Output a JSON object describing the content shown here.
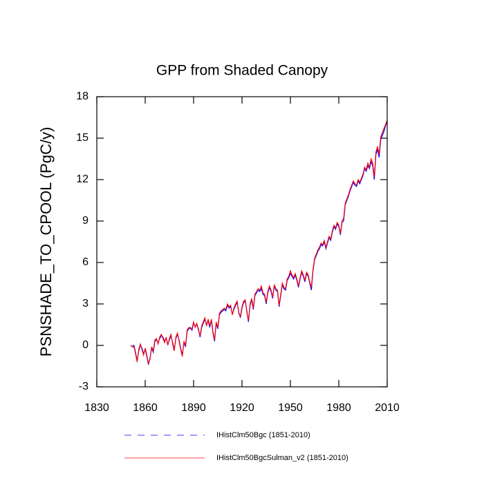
{
  "chart_data": {
    "type": "line",
    "title": "GPP from Shaded Canopy",
    "y_label": "PSNSHADE_TO_CPOOL  (PgC/y)",
    "xlim": [
      1830,
      2010
    ],
    "xticks": [
      1830,
      1860,
      1890,
      1920,
      1950,
      1980,
      2010
    ],
    "ylim": [
      -3,
      18
    ],
    "yticks": [
      -3,
      0,
      3,
      6,
      9,
      12,
      15,
      18
    ],
    "x": [
      1851,
      1852,
      1853,
      1854,
      1855,
      1856,
      1857,
      1858,
      1859,
      1860,
      1861,
      1862,
      1863,
      1864,
      1865,
      1866,
      1867,
      1868,
      1869,
      1870,
      1871,
      1872,
      1873,
      1874,
      1875,
      1876,
      1877,
      1878,
      1879,
      1880,
      1881,
      1882,
      1883,
      1884,
      1885,
      1886,
      1887,
      1888,
      1889,
      1890,
      1891,
      1892,
      1893,
      1894,
      1895,
      1896,
      1897,
      1898,
      1899,
      1900,
      1901,
      1902,
      1903,
      1904,
      1905,
      1906,
      1907,
      1908,
      1909,
      1910,
      1911,
      1912,
      1913,
      1914,
      1915,
      1916,
      1917,
      1918,
      1919,
      1920,
      1921,
      1922,
      1923,
      1924,
      1925,
      1926,
      1927,
      1928,
      1929,
      1930,
      1931,
      1932,
      1933,
      1934,
      1935,
      1936,
      1937,
      1938,
      1939,
      1940,
      1941,
      1942,
      1943,
      1944,
      1945,
      1946,
      1947,
      1948,
      1949,
      1950,
      1951,
      1952,
      1953,
      1954,
      1955,
      1956,
      1957,
      1958,
      1959,
      1960,
      1961,
      1962,
      1963,
      1964,
      1965,
      1966,
      1967,
      1968,
      1969,
      1970,
      1971,
      1972,
      1973,
      1974,
      1975,
      1976,
      1977,
      1978,
      1979,
      1980,
      1981,
      1982,
      1983,
      1984,
      1985,
      1986,
      1987,
      1988,
      1989,
      1990,
      1991,
      1992,
      1993,
      1994,
      1995,
      1996,
      1997,
      1998,
      1999,
      2000,
      2001,
      2002,
      2003,
      2004,
      2005,
      2006,
      2007,
      2008,
      2009,
      2010
    ],
    "series": [
      {
        "name": "IHistClm50Bgc (1851-2010)",
        "color": "#0000ff",
        "dash": true,
        "values": [
          0.0,
          -0.1,
          0.0,
          -0.5,
          -1.1,
          -0.4,
          0.0,
          -0.2,
          -0.6,
          -0.3,
          -0.8,
          -1.4,
          -0.9,
          -0.2,
          -0.5,
          0.3,
          0.4,
          0.2,
          0.5,
          0.7,
          0.6,
          0.3,
          0.5,
          0.1,
          0.4,
          0.7,
          0.2,
          -0.3,
          0.5,
          0.8,
          0.4,
          -0.2,
          -0.7,
          0.2,
          -0.1,
          1.0,
          1.2,
          1.3,
          1.1,
          1.6,
          1.4,
          1.5,
          1.2,
          0.6,
          1.3,
          1.6,
          1.9,
          1.5,
          1.8,
          1.3,
          1.8,
          0.9,
          0.3,
          1.6,
          1.2,
          2.2,
          2.4,
          2.5,
          2.6,
          2.5,
          2.9,
          2.7,
          2.8,
          2.3,
          2.6,
          2.9,
          3.1,
          2.4,
          2.0,
          2.7,
          3.1,
          3.2,
          2.5,
          1.7,
          2.9,
          3.3,
          2.6,
          3.6,
          3.8,
          4.0,
          3.9,
          4.1,
          3.7,
          3.6,
          3.0,
          3.8,
          4.2,
          3.9,
          3.4,
          4.3,
          4.0,
          3.9,
          2.8,
          3.6,
          4.4,
          4.1,
          4.0,
          4.7,
          4.9,
          5.2,
          5.0,
          4.8,
          5.1,
          4.7,
          4.2,
          4.8,
          5.3,
          5.0,
          4.6,
          5.2,
          5.0,
          4.5,
          4.0,
          5.4,
          6.2,
          6.5,
          6.8,
          7.0,
          7.3,
          7.2,
          7.5,
          7.0,
          7.4,
          7.8,
          7.6,
          8.2,
          8.6,
          8.4,
          8.8,
          8.6,
          8.0,
          8.9,
          9.0,
          10.2,
          10.5,
          10.8,
          11.2,
          11.5,
          11.8,
          11.6,
          11.5,
          11.9,
          11.7,
          12.0,
          12.3,
          12.8,
          12.6,
          13.0,
          12.8,
          13.3,
          13.0,
          12.0,
          13.8,
          14.2,
          13.6,
          14.9,
          15.2,
          15.5,
          15.9,
          16.2
        ]
      },
      {
        "name": "IHistClm50BgcSulman_v2 (1851-2010)",
        "color": "#ff0000",
        "dash": false,
        "values": [
          0.0,
          -0.1,
          -0.1,
          -0.6,
          -1.2,
          -0.3,
          0.1,
          -0.3,
          -0.7,
          -0.2,
          -0.7,
          -1.3,
          -1.0,
          -0.1,
          -0.4,
          0.4,
          0.5,
          0.1,
          0.6,
          0.8,
          0.5,
          0.2,
          0.6,
          0.0,
          0.5,
          0.8,
          0.1,
          -0.4,
          0.6,
          0.9,
          0.3,
          -0.3,
          -0.8,
          0.3,
          0.0,
          1.1,
          1.3,
          1.2,
          1.2,
          1.7,
          1.3,
          1.6,
          1.1,
          0.7,
          1.4,
          1.7,
          2.0,
          1.4,
          1.9,
          1.4,
          1.9,
          1.0,
          0.4,
          1.7,
          1.3,
          2.3,
          2.5,
          2.6,
          2.7,
          2.6,
          3.0,
          2.8,
          2.9,
          2.2,
          2.7,
          3.0,
          3.2,
          2.3,
          2.1,
          2.8,
          3.2,
          3.3,
          2.4,
          1.8,
          3.0,
          3.4,
          2.7,
          3.7,
          3.9,
          4.1,
          4.0,
          4.3,
          3.8,
          3.7,
          3.1,
          3.9,
          4.3,
          4.0,
          3.5,
          4.4,
          4.1,
          4.0,
          2.9,
          3.7,
          4.5,
          4.2,
          4.1,
          4.8,
          5.0,
          5.4,
          5.1,
          4.9,
          5.2,
          4.8,
          4.3,
          4.9,
          5.4,
          5.1,
          4.7,
          5.3,
          5.1,
          4.6,
          4.2,
          5.5,
          6.3,
          6.6,
          6.9,
          7.1,
          7.4,
          7.3,
          7.6,
          7.1,
          7.5,
          7.9,
          7.7,
          8.3,
          8.7,
          8.5,
          8.9,
          8.7,
          8.1,
          9.0,
          9.2,
          10.3,
          10.6,
          10.9,
          11.3,
          11.6,
          11.9,
          11.7,
          11.6,
          12.0,
          11.8,
          12.1,
          12.4,
          12.9,
          12.7,
          13.2,
          12.9,
          13.5,
          13.2,
          12.2,
          14.0,
          14.4,
          13.8,
          15.1,
          15.4,
          15.7,
          16.0,
          16.3
        ]
      }
    ]
  }
}
